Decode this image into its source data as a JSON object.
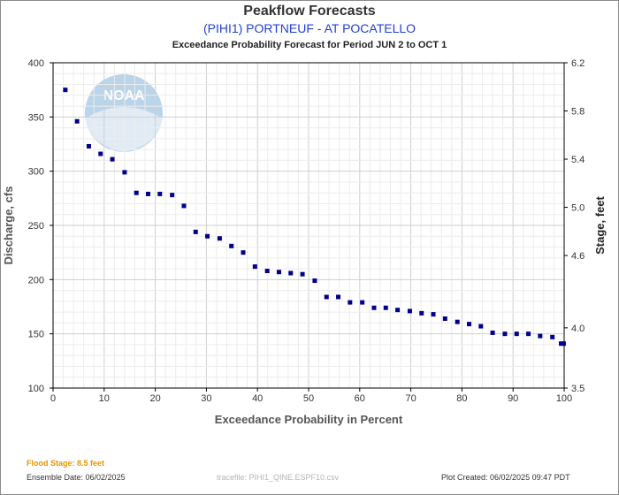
{
  "header": {
    "title": "Peakflow Forecasts",
    "subtitle": "(PIHI1) PORTNEUF - AT POCATELLO",
    "period": "Exceedance Probability Forecast for Period JUN 2 to OCT 1"
  },
  "footer": {
    "flood_stage": "Flood Stage: 8.5 feet",
    "ensemble_date": "Ensemble Date: 06/02/2025",
    "tracefile": "tracefile: PIHI1_QINE.ESPF10.csv",
    "plot_created": "Plot Created: 06/02/2025 09:47 PDT"
  },
  "logo": {
    "text": "NOAA",
    "color": "#3d86c6"
  },
  "chart_data": {
    "type": "scatter",
    "title": "Peakflow Forecasts",
    "xlabel": "Exceedance Probability in Percent",
    "ylabel": "Discharge, cfs",
    "y2label": "Stage, feet",
    "xlim": [
      0,
      100
    ],
    "ylim": [
      100,
      400
    ],
    "y2lim": [
      3.5,
      6.2
    ],
    "x_ticks": [
      "0",
      "10",
      "20",
      "30",
      "40",
      "50",
      "60",
      "70",
      "80",
      "90",
      "100"
    ],
    "y_ticks": [
      "100",
      "150",
      "200",
      "250",
      "300",
      "350",
      "400"
    ],
    "y2_ticks": [
      {
        "value": 3.5,
        "label": "3.5"
      },
      {
        "value": 4.0,
        "label": "4.0"
      },
      {
        "value": 4.6,
        "label": "4.6"
      },
      {
        "value": 5.0,
        "label": "5.0"
      },
      {
        "value": 5.4,
        "label": "5.4"
      },
      {
        "value": 5.8,
        "label": "5.8"
      },
      {
        "value": 6.2,
        "label": "6.2"
      }
    ],
    "grid": true,
    "marker_color": "#00008b",
    "points": [
      {
        "x": 2.4,
        "y": 375
      },
      {
        "x": 4.7,
        "y": 346
      },
      {
        "x": 7.0,
        "y": 323
      },
      {
        "x": 9.3,
        "y": 316
      },
      {
        "x": 11.6,
        "y": 311
      },
      {
        "x": 14.0,
        "y": 299
      },
      {
        "x": 16.3,
        "y": 280
      },
      {
        "x": 18.6,
        "y": 279
      },
      {
        "x": 20.9,
        "y": 279
      },
      {
        "x": 23.3,
        "y": 278
      },
      {
        "x": 25.6,
        "y": 268
      },
      {
        "x": 27.9,
        "y": 244
      },
      {
        "x": 30.2,
        "y": 240
      },
      {
        "x": 32.6,
        "y": 238
      },
      {
        "x": 34.9,
        "y": 231
      },
      {
        "x": 37.2,
        "y": 225
      },
      {
        "x": 39.5,
        "y": 212
      },
      {
        "x": 41.9,
        "y": 208
      },
      {
        "x": 44.2,
        "y": 207
      },
      {
        "x": 46.5,
        "y": 206
      },
      {
        "x": 48.8,
        "y": 205
      },
      {
        "x": 51.2,
        "y": 199
      },
      {
        "x": 53.5,
        "y": 184
      },
      {
        "x": 55.8,
        "y": 184
      },
      {
        "x": 58.1,
        "y": 179
      },
      {
        "x": 60.5,
        "y": 179
      },
      {
        "x": 62.8,
        "y": 174
      },
      {
        "x": 65.1,
        "y": 174
      },
      {
        "x": 67.4,
        "y": 172
      },
      {
        "x": 69.8,
        "y": 171
      },
      {
        "x": 72.1,
        "y": 169
      },
      {
        "x": 74.4,
        "y": 168
      },
      {
        "x": 76.7,
        "y": 164
      },
      {
        "x": 79.1,
        "y": 161
      },
      {
        "x": 81.4,
        "y": 159
      },
      {
        "x": 83.7,
        "y": 157
      },
      {
        "x": 86.0,
        "y": 151
      },
      {
        "x": 88.4,
        "y": 150
      },
      {
        "x": 90.7,
        "y": 150
      },
      {
        "x": 93.0,
        "y": 150
      },
      {
        "x": 95.3,
        "y": 148
      },
      {
        "x": 97.7,
        "y": 147
      },
      {
        "x": 99.4,
        "y": 141
      },
      {
        "x": 99.9,
        "y": 141
      }
    ]
  }
}
